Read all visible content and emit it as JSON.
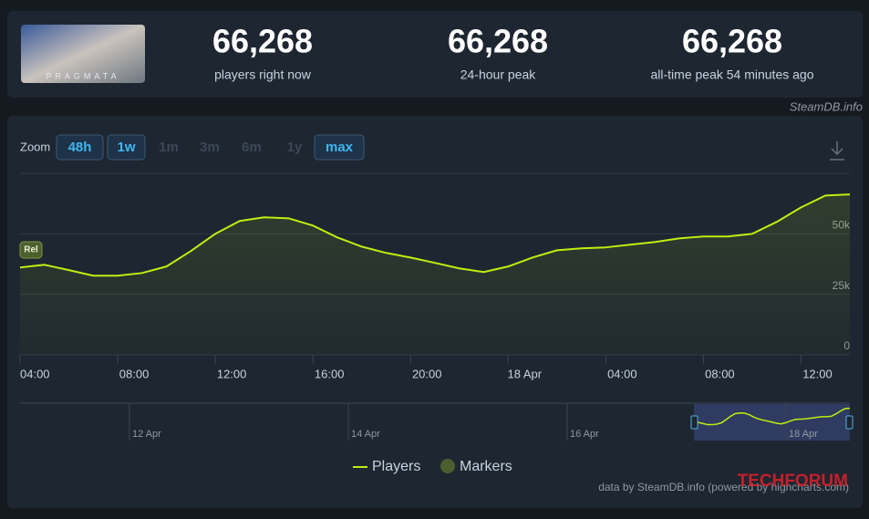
{
  "stats": [
    {
      "value": "66,268",
      "label": "players right now"
    },
    {
      "value": "66,268",
      "label": "24-hour peak"
    },
    {
      "value": "66,268",
      "label": "all-time peak 54 minutes ago"
    }
  ],
  "game_name": "PRAGMATA",
  "source": "SteamDB.info",
  "zoom": {
    "label": "Zoom",
    "options": [
      {
        "label": "48h",
        "active": true
      },
      {
        "label": "1w",
        "active": true
      },
      {
        "label": "1m",
        "active": false
      },
      {
        "label": "3m",
        "active": false
      },
      {
        "label": "6m",
        "active": false
      },
      {
        "label": "1y",
        "active": false
      },
      {
        "label": "max",
        "active": true
      }
    ]
  },
  "chart_data": {
    "type": "line",
    "x": [
      4,
      5,
      6,
      7,
      8,
      9,
      10,
      11,
      12,
      13,
      14,
      15,
      16,
      17,
      18,
      19,
      20,
      21,
      22,
      23,
      24,
      25,
      26,
      27,
      28,
      29,
      30,
      31,
      32,
      33,
      34,
      35,
      36,
      37,
      38
    ],
    "series": [
      {
        "name": "Players",
        "color": "#beee11",
        "values": [
          36100,
          37200,
          35000,
          32700,
          32700,
          33800,
          36500,
          42900,
          50000,
          55300,
          56800,
          56400,
          53400,
          48500,
          44700,
          42100,
          40200,
          38000,
          35700,
          34200,
          36500,
          40200,
          43200,
          44000,
          44400,
          45500,
          46600,
          48100,
          48900,
          48900,
          50000,
          54900,
          60900,
          65800,
          66268
        ]
      }
    ],
    "markers": {
      "name": "Markers",
      "color": "#4c5f2e",
      "points": [
        {
          "x": 4,
          "label": "Rel"
        }
      ]
    },
    "xlim": [
      4,
      38
    ],
    "xticks": [
      {
        "value": 4,
        "label": "04:00"
      },
      {
        "value": 8,
        "label": "08:00"
      },
      {
        "value": 12,
        "label": "12:00"
      },
      {
        "value": 16,
        "label": "16:00"
      },
      {
        "value": 20,
        "label": "20:00"
      },
      {
        "value": 24,
        "label": "18 Apr"
      },
      {
        "value": 28,
        "label": "04:00"
      },
      {
        "value": 32,
        "label": "08:00"
      },
      {
        "value": 36,
        "label": "12:00"
      }
    ],
    "ylim": [
      0,
      75000
    ],
    "yticks": [
      0,
      {
        "value": 25000,
        "label": "25k"
      },
      {
        "value": 50000,
        "label": "50k"
      }
    ],
    "grid": true,
    "navigator_labels": [
      "12 Apr",
      "14 Apr",
      "16 Apr",
      "18 Apr"
    ],
    "credits": "data by SteamDB.info (powered by highcharts.com)"
  },
  "watermark": "TECHFORUM"
}
